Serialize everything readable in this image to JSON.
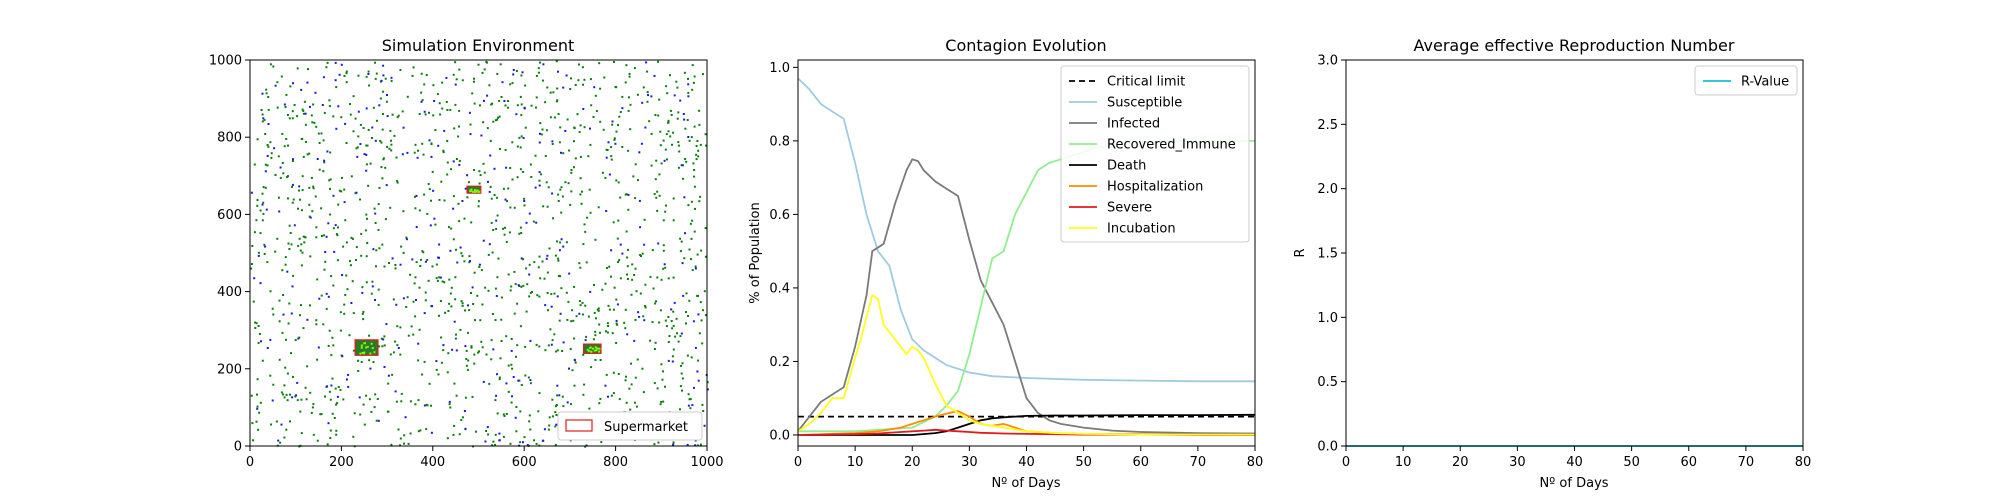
{
  "chart_data": [
    {
      "type": "scatter",
      "title": "Simulation Environment",
      "xlabel": "",
      "ylabel": "",
      "xlim": [
        0,
        1000
      ],
      "ylim": [
        0,
        1000
      ],
      "xticks": [
        0,
        200,
        400,
        600,
        800,
        1000
      ],
      "yticks": [
        0,
        200,
        400,
        600,
        800,
        1000
      ],
      "colors": {
        "susceptible": "#1a1adb",
        "recovered": "#0a7d0a",
        "supermarket_edge": "#e31a1c",
        "supermarket_fill": "#2a7a2a"
      },
      "population": {
        "green_count": 1300,
        "blue_count": 330
      },
      "supermarkets": [
        {
          "x": 230,
          "y": 235,
          "w": 50,
          "h": 40
        },
        {
          "x": 475,
          "y": 655,
          "w": 30,
          "h": 18
        },
        {
          "x": 730,
          "y": 240,
          "w": 38,
          "h": 24
        }
      ],
      "legend": {
        "label": "Supermarket",
        "position": "lower-right"
      }
    },
    {
      "type": "line",
      "title": "Contagion Evolution",
      "xlabel": "Nº of Days",
      "ylabel": "% of Population",
      "xlim": [
        0,
        80
      ],
      "ylim": [
        -0.03,
        1.02
      ],
      "xticks": [
        0,
        10,
        20,
        30,
        40,
        50,
        60,
        70,
        80
      ],
      "yticks": [
        "0.0",
        "0.2",
        "0.4",
        "0.6",
        "0.8",
        "1.0"
      ],
      "legend_position": "upper-right",
      "series": [
        {
          "name": "Critical limit",
          "color": "#000000",
          "dashed": true,
          "x": [
            0,
            80
          ],
          "y": [
            0.05,
            0.05
          ]
        },
        {
          "name": "Susceptible",
          "color": "#9fcbe0",
          "x": [
            0,
            2,
            4,
            6,
            8,
            10,
            12,
            14,
            16,
            18,
            20,
            22,
            24,
            26,
            28,
            30,
            34,
            40,
            50,
            60,
            70,
            80
          ],
          "y": [
            0.97,
            0.94,
            0.9,
            0.88,
            0.86,
            0.74,
            0.6,
            0.5,
            0.46,
            0.34,
            0.26,
            0.23,
            0.21,
            0.19,
            0.18,
            0.17,
            0.16,
            0.155,
            0.15,
            0.148,
            0.146,
            0.146
          ]
        },
        {
          "name": "Infected",
          "color": "#7a7a7a",
          "x": [
            0,
            2,
            4,
            6,
            8,
            10,
            12,
            13,
            15,
            17,
            19,
            20,
            21,
            22,
            24,
            26,
            28,
            30,
            32,
            34,
            36,
            38,
            40,
            42,
            44,
            46,
            50,
            55,
            60,
            70,
            80
          ],
          "y": [
            0.01,
            0.05,
            0.09,
            0.11,
            0.13,
            0.24,
            0.38,
            0.5,
            0.52,
            0.63,
            0.72,
            0.75,
            0.745,
            0.72,
            0.69,
            0.67,
            0.65,
            0.53,
            0.42,
            0.36,
            0.3,
            0.2,
            0.1,
            0.06,
            0.04,
            0.03,
            0.02,
            0.012,
            0.008,
            0.005,
            0.004
          ]
        },
        {
          "name": "Recovered_Immune",
          "color": "#90ee90",
          "x": [
            0,
            10,
            20,
            24,
            26,
            28,
            30,
            32,
            34,
            36,
            38,
            40,
            42,
            44,
            46,
            48,
            50,
            52,
            55,
            60,
            65,
            70,
            75,
            80
          ],
          "y": [
            0.01,
            0.01,
            0.02,
            0.05,
            0.08,
            0.12,
            0.22,
            0.35,
            0.48,
            0.5,
            0.6,
            0.66,
            0.72,
            0.74,
            0.75,
            0.76,
            0.77,
            0.78,
            0.79,
            0.795,
            0.8,
            0.8,
            0.8,
            0.8
          ]
        },
        {
          "name": "Death",
          "color": "#000000",
          "x": [
            0,
            20,
            24,
            26,
            28,
            30,
            32,
            34,
            36,
            38,
            40,
            45,
            50,
            60,
            70,
            80
          ],
          "y": [
            0,
            0,
            0.005,
            0.01,
            0.02,
            0.03,
            0.04,
            0.045,
            0.048,
            0.05,
            0.052,
            0.053,
            0.053,
            0.054,
            0.054,
            0.055
          ]
        },
        {
          "name": "Hospitalization",
          "color": "#ff8c00",
          "x": [
            0,
            10,
            14,
            16,
            18,
            20,
            22,
            24,
            26,
            28,
            30,
            32,
            34,
            36,
            38,
            40,
            45,
            50,
            60,
            70,
            80
          ],
          "y": [
            0,
            0.005,
            0.01,
            0.015,
            0.02,
            0.03,
            0.04,
            0.05,
            0.058,
            0.065,
            0.05,
            0.03,
            0.025,
            0.03,
            0.02,
            0.01,
            0.005,
            0.003,
            0.002,
            0.001,
            0.001
          ]
        },
        {
          "name": "Severe",
          "color": "#e31a1c",
          "x": [
            0,
            10,
            14,
            18,
            20,
            22,
            24,
            26,
            28,
            30,
            32,
            34,
            36,
            40,
            45,
            50,
            60,
            70,
            80
          ],
          "y": [
            0,
            0.002,
            0.004,
            0.008,
            0.01,
            0.012,
            0.014,
            0.012,
            0.01,
            0.008,
            0.006,
            0.005,
            0.004,
            0.003,
            0.002,
            0.001,
            0.001,
            0,
            0
          ]
        },
        {
          "name": "Incubation",
          "color": "#ffff1a",
          "x": [
            0,
            2,
            4,
            6,
            8,
            10,
            11,
            12,
            13,
            14,
            15,
            16,
            17,
            18,
            19,
            20,
            21,
            22,
            24,
            26,
            28,
            30,
            32,
            34,
            36,
            38,
            40,
            45,
            50,
            60,
            70,
            80
          ],
          "y": [
            0.01,
            0.03,
            0.06,
            0.1,
            0.1,
            0.21,
            0.26,
            0.32,
            0.38,
            0.37,
            0.3,
            0.28,
            0.26,
            0.24,
            0.22,
            0.24,
            0.23,
            0.21,
            0.14,
            0.08,
            0.06,
            0.04,
            0.03,
            0.025,
            0.02,
            0.015,
            0.01,
            0.005,
            0.003,
            0.001,
            0.001,
            0.001
          ]
        }
      ]
    },
    {
      "type": "line",
      "title": "Average effective Reproduction Number",
      "xlabel": "Nº of Days",
      "ylabel": "R",
      "xlim": [
        0,
        80
      ],
      "ylim": [
        0,
        3
      ],
      "xticks": [
        0,
        10,
        20,
        30,
        40,
        50,
        60,
        70,
        80
      ],
      "yticks": [
        "0.0",
        "0.5",
        "1.0",
        "1.5",
        "2.0",
        "2.5",
        "3.0"
      ],
      "legend_position": "upper-right",
      "series": [
        {
          "name": "R-Value",
          "color": "#17becf",
          "x": [
            0,
            80
          ],
          "y": [
            0,
            0
          ]
        }
      ]
    }
  ]
}
